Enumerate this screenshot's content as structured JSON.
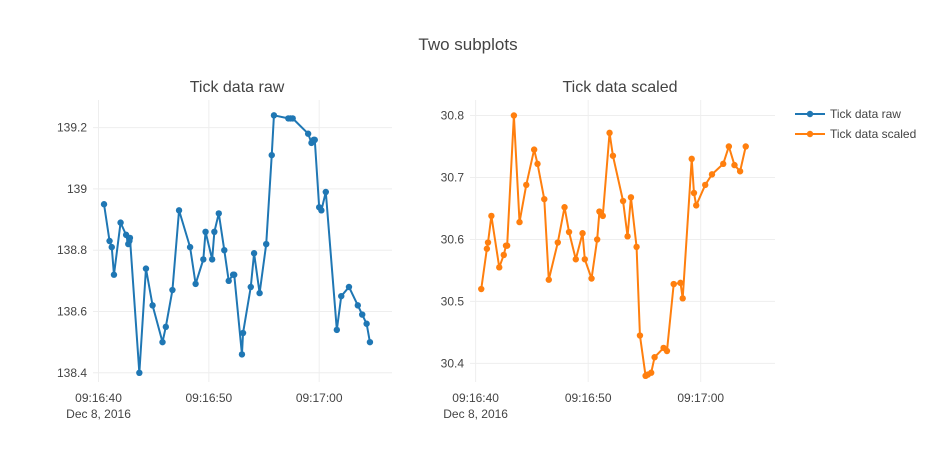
{
  "figure": {
    "title": "Two subplots"
  },
  "legend": {
    "placement": "top-right",
    "entries": [
      {
        "label": "Tick data raw",
        "color": "#1f77b4"
      },
      {
        "label": "Tick data scaled",
        "color": "#ff7f0e"
      }
    ]
  },
  "chart_data": [
    {
      "type": "line",
      "title": "Tick data raw",
      "xlabel": "",
      "ylabel": "",
      "grid": true,
      "x_ticks": [
        {
          "value": 0,
          "label": "09:16:40",
          "sublabel": "Dec 8, 2016"
        },
        {
          "value": 10,
          "label": "09:16:50"
        },
        {
          "value": 20,
          "label": "09:17:00"
        }
      ],
      "y_ticks": [
        138.4,
        138.6,
        138.8,
        139,
        139.2
      ],
      "y_tick_labels": [
        "138.4",
        "138.6",
        "138.8",
        "139",
        "139.2"
      ],
      "xlim": [
        -0.5,
        26.6
      ],
      "ylim": [
        138.37,
        139.29
      ],
      "series": [
        {
          "name": "Tick data raw",
          "color": "#1f77b4",
          "x": [
            0.5,
            1.0,
            1.2,
            1.4,
            2.0,
            2.5,
            2.7,
            2.8,
            2.85,
            3.7,
            4.3,
            4.9,
            5.8,
            6.1,
            6.7,
            7.3,
            8.3,
            8.8,
            9.5,
            9.7,
            10.3,
            10.5,
            10.9,
            11.4,
            11.8,
            12.2,
            12.3,
            13.0,
            13.1,
            13.8,
            14.1,
            14.6,
            15.2,
            15.7,
            15.9,
            17.2,
            17.4,
            17.6,
            19.0,
            19.3,
            19.5,
            19.6,
            20.0,
            20.2,
            20.6,
            21.6,
            22.0,
            22.7,
            23.5,
            23.9,
            24.3,
            24.6
          ],
          "y": [
            138.95,
            138.83,
            138.81,
            138.72,
            138.89,
            138.85,
            138.82,
            138.83,
            138.84,
            138.4,
            138.74,
            138.62,
            138.5,
            138.55,
            138.67,
            138.93,
            138.81,
            138.69,
            138.77,
            138.86,
            138.77,
            138.86,
            138.92,
            138.8,
            138.7,
            138.72,
            138.72,
            138.46,
            138.53,
            138.68,
            138.79,
            138.66,
            138.82,
            139.11,
            139.24,
            139.23,
            139.23,
            139.23,
            139.18,
            139.15,
            139.16,
            139.16,
            138.94,
            138.93,
            138.99,
            138.54,
            138.65,
            138.68,
            138.62,
            138.59,
            138.56,
            138.5
          ]
        }
      ]
    },
    {
      "type": "line",
      "title": "Tick data scaled",
      "xlabel": "",
      "ylabel": "",
      "grid": true,
      "x_ticks": [
        {
          "value": 0,
          "label": "09:16:40",
          "sublabel": "Dec 8, 2016"
        },
        {
          "value": 10,
          "label": "09:16:50"
        },
        {
          "value": 20,
          "label": "09:17:00"
        }
      ],
      "y_ticks": [
        30.4,
        30.5,
        30.6,
        30.7,
        30.8
      ],
      "y_tick_labels": [
        "30.4",
        "30.5",
        "30.6",
        "30.7",
        "30.8"
      ],
      "xlim": [
        -0.5,
        26.6
      ],
      "ylim": [
        30.37,
        30.825
      ],
      "series": [
        {
          "name": "Tick data scaled",
          "color": "#ff7f0e",
          "x": [
            0.5,
            1.0,
            1.1,
            1.4,
            2.1,
            2.5,
            2.7,
            2.8,
            3.4,
            3.9,
            4.5,
            5.2,
            5.5,
            6.1,
            6.5,
            7.3,
            7.9,
            8.3,
            8.9,
            9.5,
            9.7,
            10.3,
            10.8,
            11.0,
            11.3,
            11.9,
            12.2,
            13.1,
            13.5,
            13.8,
            14.3,
            14.6,
            15.1,
            15.3,
            15.6,
            15.9,
            16.7,
            17.0,
            17.6,
            18.2,
            18.4,
            19.2,
            19.4,
            19.6,
            20.4,
            21.0,
            22.0,
            22.5,
            23.0,
            23.5,
            24.0
          ],
          "y": [
            30.52,
            30.585,
            30.595,
            30.638,
            30.555,
            30.575,
            30.59,
            30.59,
            30.8,
            30.628,
            30.688,
            30.745,
            30.722,
            30.665,
            30.535,
            30.595,
            30.652,
            30.612,
            30.568,
            30.61,
            30.568,
            30.537,
            30.6,
            30.645,
            30.638,
            30.772,
            30.735,
            30.662,
            30.605,
            30.668,
            30.588,
            30.445,
            30.38,
            30.382,
            30.385,
            30.41,
            30.425,
            30.42,
            30.528,
            30.53,
            30.505,
            30.73,
            30.675,
            30.655,
            30.688,
            30.705,
            30.722,
            30.75,
            30.72,
            30.71,
            30.75
          ]
        }
      ]
    }
  ]
}
